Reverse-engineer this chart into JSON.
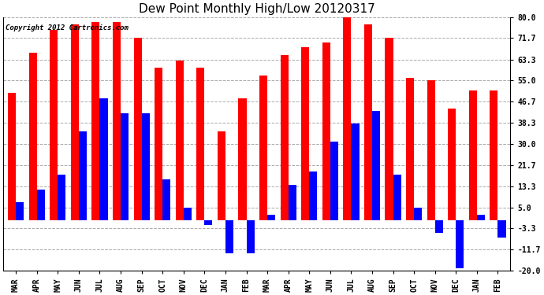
{
  "title": "Dew Point Monthly High/Low 20120317",
  "copyright": "Copyright 2012 Cartronics.com",
  "months": [
    "MAR",
    "APR",
    "MAY",
    "JUN",
    "JUL",
    "AUG",
    "SEP",
    "OCT",
    "NOV",
    "DEC",
    "JAN",
    "FEB",
    "MAR",
    "APR",
    "MAY",
    "JUN",
    "JUL",
    "AUG",
    "SEP",
    "OCT",
    "NOV",
    "DEC",
    "JAN",
    "FEB"
  ],
  "high_values": [
    50,
    66,
    75,
    77,
    78,
    78,
    72,
    60,
    63,
    60,
    35,
    48,
    57,
    65,
    68,
    70,
    80,
    77,
    72,
    56,
    55,
    44,
    51,
    51
  ],
  "low_values": [
    7,
    12,
    18,
    35,
    48,
    42,
    42,
    16,
    5,
    -2,
    -13,
    -13,
    2,
    14,
    19,
    31,
    38,
    43,
    18,
    5,
    -5,
    -19,
    2,
    -7
  ],
  "ylim": [
    -20,
    80
  ],
  "yticks": [
    -20.0,
    -11.7,
    -3.3,
    5.0,
    13.3,
    21.7,
    30.0,
    38.3,
    46.7,
    55.0,
    63.3,
    71.7,
    80.0
  ],
  "ytick_labels": [
    "-20.0",
    "-11.7",
    "-3.3",
    "5.0",
    "13.3",
    "21.7",
    "30.0",
    "38.3",
    "46.7",
    "55.0",
    "63.3",
    "71.7",
    "80.0"
  ],
  "high_color": "#ff0000",
  "low_color": "#0000ff",
  "bar_width": 0.38,
  "background_color": "#ffffff",
  "grid_color": "#aaaaaa",
  "title_fontsize": 11,
  "tick_fontsize": 7,
  "copyright_fontsize": 6.5
}
